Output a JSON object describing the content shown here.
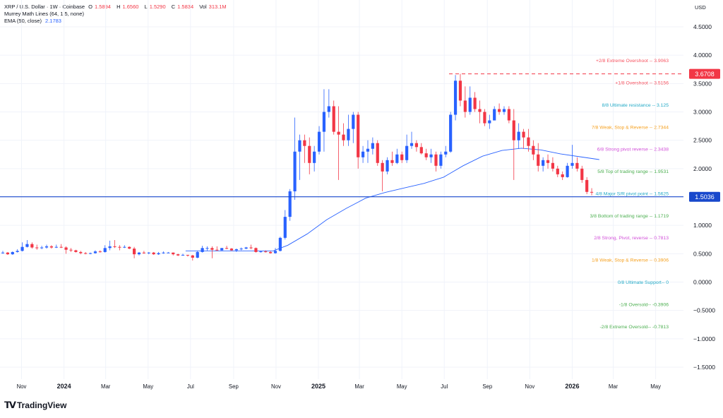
{
  "header": {
    "symbol": "XRP / U.S. Dollar · 1W · Coinbase",
    "o_label": "O",
    "o": "1.5894",
    "h_label": "H",
    "h": "1.6560",
    "l_label": "L",
    "l": "1.5290",
    "c_label": "C",
    "c": "1.5834",
    "vol_label": "Vol",
    "vol": "313.1M",
    "indicator1": "Murrey Math Lines (64, 1.5, none)",
    "indicator2_label": "EMA (50, close)",
    "indicator2_value": "2.1783"
  },
  "branding": {
    "name": "TradingView"
  },
  "chart_data": {
    "type": "candlestick",
    "currency_label": "USD",
    "y_range": [
      -1.75,
      4.75
    ],
    "y_ticks": [
      "4.5000",
      "4.0000",
      "3.5000",
      "3.0000",
      "2.5000",
      "2.0000",
      "1.5000",
      "1.0000",
      "0.5000",
      "0.0000",
      "−0.5000",
      "−1.0000",
      "−1.5000"
    ],
    "y_tick_values": [
      4.5,
      4.0,
      3.5,
      3.0,
      2.5,
      2.0,
      1.5,
      1.0,
      0.5,
      0.0,
      -0.5,
      -1.0,
      -1.5
    ],
    "x_ticks": [
      {
        "label": "Nov",
        "date": "2023-11-01",
        "bold": false
      },
      {
        "label": "2024",
        "date": "2024-01-01",
        "bold": true
      },
      {
        "label": "Mar",
        "date": "2024-03-01",
        "bold": false
      },
      {
        "label": "May",
        "date": "2024-05-01",
        "bold": false
      },
      {
        "label": "Jul",
        "date": "2024-07-01",
        "bold": false
      },
      {
        "label": "Sep",
        "date": "2024-09-01",
        "bold": false
      },
      {
        "label": "Nov",
        "date": "2024-11-01",
        "bold": false
      },
      {
        "label": "2025",
        "date": "2025-01-01",
        "bold": true
      },
      {
        "label": "Mar",
        "date": "2025-03-01",
        "bold": false
      },
      {
        "label": "May",
        "date": "2025-05-01",
        "bold": false
      },
      {
        "label": "Jul",
        "date": "2025-07-01",
        "bold": false
      },
      {
        "label": "Sep",
        "date": "2025-09-01",
        "bold": false
      },
      {
        "label": "Nov",
        "date": "2025-11-01",
        "bold": false
      },
      {
        "label": "2026",
        "date": "2026-01-01",
        "bold": true
      },
      {
        "label": "Mar",
        "date": "2026-03-01",
        "bold": false
      },
      {
        "label": "May",
        "date": "2026-05-01",
        "bold": false
      }
    ],
    "x_range": [
      "2023-10-01",
      "2026-06-10"
    ],
    "price_labels": [
      {
        "value": 3.6708,
        "text": "3.6708",
        "color": "#f23645",
        "line": "dashed"
      },
      {
        "value": 1.5036,
        "text": "1.5036",
        "color": "#1848cc",
        "line": "solid"
      }
    ],
    "murrey_lines": [
      {
        "label": "+2/8 Extreme Overshoot --",
        "value": 3.9063,
        "text": "3.9063",
        "color": "#f7525f"
      },
      {
        "label": "+1/8 Overshoot --",
        "value": 3.5156,
        "text": "3.5156",
        "color": "#f7525f"
      },
      {
        "label": "8/8 Ultimate resistance --",
        "value": 3.125,
        "text": "3.125",
        "color": "#22a9c6"
      },
      {
        "label": "7/8 Weak, Stop & Reverse --",
        "value": 2.7344,
        "text": "2.7344",
        "color": "#f59f1c"
      },
      {
        "label": "6/8 Strong pivot reverse --",
        "value": 2.3438,
        "text": "2.3438",
        "color": "#d14fd8"
      },
      {
        "label": "5/8 Top of trading range --",
        "value": 1.9531,
        "text": "1.9531",
        "color": "#4caf50"
      },
      {
        "label": "4/8 Major S/R pivot point --",
        "value": 1.5625,
        "text": "1.5625",
        "color": "#22a9c6"
      },
      {
        "label": "3/8 Bottom of trading range --",
        "value": 1.1719,
        "text": "1.1719",
        "color": "#4caf50"
      },
      {
        "label": "2/8 Strong, Pivot, reverse --",
        "value": 0.7813,
        "text": "0.7813",
        "color": "#d14fd8"
      },
      {
        "label": "1/8 Weak, Stop & Reverse --",
        "value": 0.3906,
        "text": "0.3906",
        "color": "#f59f1c"
      },
      {
        "label": "0/8 Ultimate Support--",
        "value": 0,
        "text": "0",
        "color": "#22a9c6"
      },
      {
        "label": "-1/8 Oversold--",
        "value": -0.3906,
        "text": "-0.3906",
        "color": "#4caf50"
      },
      {
        "label": "-2/8 Extreme Oversold--",
        "value": -0.7813,
        "text": "-0.7813",
        "color": "#4caf50"
      }
    ],
    "colors": {
      "up": "#2962ff",
      "down": "#f23645",
      "ema": "#2962ff",
      "grid": "#f0f3fa"
    },
    "candles": [
      [
        "2023-10-02",
        0.52,
        0.55,
        0.5,
        0.52
      ],
      [
        "2023-10-09",
        0.52,
        0.53,
        0.48,
        0.49
      ],
      [
        "2023-10-16",
        0.49,
        0.54,
        0.48,
        0.53
      ],
      [
        "2023-10-23",
        0.53,
        0.58,
        0.52,
        0.55
      ],
      [
        "2023-10-30",
        0.55,
        0.7,
        0.54,
        0.62
      ],
      [
        "2023-11-06",
        0.62,
        0.74,
        0.61,
        0.67
      ],
      [
        "2023-11-13",
        0.67,
        0.7,
        0.59,
        0.61
      ],
      [
        "2023-11-20",
        0.61,
        0.66,
        0.57,
        0.6
      ],
      [
        "2023-11-27",
        0.6,
        0.64,
        0.58,
        0.61
      ],
      [
        "2023-12-04",
        0.61,
        0.66,
        0.59,
        0.63
      ],
      [
        "2023-12-11",
        0.63,
        0.65,
        0.59,
        0.61
      ],
      [
        "2023-12-18",
        0.61,
        0.66,
        0.6,
        0.62
      ],
      [
        "2023-12-25",
        0.62,
        0.67,
        0.6,
        0.61
      ],
      [
        "2024-01-01",
        0.61,
        0.63,
        0.5,
        0.57
      ],
      [
        "2024-01-08",
        0.57,
        0.6,
        0.53,
        0.56
      ],
      [
        "2024-01-15",
        0.56,
        0.57,
        0.52,
        0.53
      ],
      [
        "2024-01-22",
        0.53,
        0.55,
        0.49,
        0.51
      ],
      [
        "2024-01-29",
        0.51,
        0.53,
        0.49,
        0.5
      ],
      [
        "2024-02-05",
        0.5,
        0.52,
        0.49,
        0.51
      ],
      [
        "2024-02-12",
        0.51,
        0.56,
        0.5,
        0.54
      ],
      [
        "2024-02-19",
        0.54,
        0.56,
        0.52,
        0.53
      ],
      [
        "2024-02-26",
        0.53,
        0.65,
        0.52,
        0.6
      ],
      [
        "2024-03-04",
        0.6,
        0.73,
        0.56,
        0.63
      ],
      [
        "2024-03-11",
        0.63,
        0.74,
        0.6,
        0.62
      ],
      [
        "2024-03-18",
        0.62,
        0.65,
        0.56,
        0.61
      ],
      [
        "2024-03-25",
        0.61,
        0.65,
        0.6,
        0.62
      ],
      [
        "2024-04-01",
        0.62,
        0.63,
        0.58,
        0.59
      ],
      [
        "2024-04-08",
        0.59,
        0.62,
        0.42,
        0.49
      ],
      [
        "2024-04-15",
        0.49,
        0.53,
        0.47,
        0.52
      ],
      [
        "2024-04-22",
        0.52,
        0.55,
        0.5,
        0.51
      ],
      [
        "2024-04-29",
        0.51,
        0.53,
        0.49,
        0.52
      ],
      [
        "2024-05-06",
        0.52,
        0.53,
        0.48,
        0.49
      ],
      [
        "2024-05-13",
        0.49,
        0.53,
        0.48,
        0.51
      ],
      [
        "2024-05-20",
        0.51,
        0.54,
        0.5,
        0.52
      ],
      [
        "2024-05-27",
        0.52,
        0.53,
        0.51,
        0.52
      ],
      [
        "2024-06-03",
        0.52,
        0.52,
        0.47,
        0.49
      ],
      [
        "2024-06-10",
        0.49,
        0.5,
        0.46,
        0.47
      ],
      [
        "2024-06-17",
        0.47,
        0.5,
        0.47,
        0.48
      ],
      [
        "2024-06-24",
        0.48,
        0.48,
        0.45,
        0.47
      ],
      [
        "2024-07-01",
        0.47,
        0.48,
        0.38,
        0.43
      ],
      [
        "2024-07-08",
        0.43,
        0.55,
        0.42,
        0.53
      ],
      [
        "2024-07-15",
        0.53,
        0.64,
        0.52,
        0.6
      ],
      [
        "2024-07-22",
        0.6,
        0.63,
        0.55,
        0.6
      ],
      [
        "2024-07-29",
        0.6,
        0.63,
        0.42,
        0.57
      ],
      [
        "2024-08-05",
        0.57,
        0.63,
        0.55,
        0.56
      ],
      [
        "2024-08-12",
        0.56,
        0.6,
        0.55,
        0.6
      ],
      [
        "2024-08-19",
        0.6,
        0.64,
        0.58,
        0.59
      ],
      [
        "2024-08-26",
        0.59,
        0.6,
        0.55,
        0.56
      ],
      [
        "2024-09-02",
        0.56,
        0.59,
        0.53,
        0.58
      ],
      [
        "2024-09-09",
        0.58,
        0.61,
        0.56,
        0.59
      ],
      [
        "2024-09-16",
        0.59,
        0.62,
        0.58,
        0.61
      ],
      [
        "2024-09-23",
        0.61,
        0.66,
        0.58,
        0.6
      ],
      [
        "2024-09-30",
        0.6,
        0.61,
        0.52,
        0.53
      ],
      [
        "2024-10-07",
        0.53,
        0.55,
        0.52,
        0.54
      ],
      [
        "2024-10-14",
        0.54,
        0.56,
        0.52,
        0.53
      ],
      [
        "2024-10-21",
        0.53,
        0.55,
        0.5,
        0.51
      ],
      [
        "2024-10-28",
        0.51,
        0.6,
        0.5,
        0.55
      ],
      [
        "2024-11-04",
        0.55,
        0.8,
        0.54,
        0.78
      ],
      [
        "2024-11-11",
        0.78,
        1.27,
        0.75,
        1.15
      ],
      [
        "2024-11-18",
        1.15,
        1.64,
        1.08,
        1.6
      ],
      [
        "2024-11-25",
        1.6,
        2.9,
        1.45,
        2.3
      ],
      [
        "2024-12-02",
        2.3,
        2.6,
        1.8,
        2.5
      ],
      [
        "2024-12-09",
        2.5,
        2.6,
        2.1,
        2.4
      ],
      [
        "2024-12-16",
        2.4,
        2.55,
        1.9,
        2.1
      ],
      [
        "2024-12-23",
        2.1,
        2.4,
        1.95,
        2.3
      ],
      [
        "2024-12-30",
        2.3,
        2.75,
        2.25,
        2.65
      ],
      [
        "2025-01-06",
        2.65,
        3.4,
        2.3,
        3.0
      ],
      [
        "2025-01-13",
        3.0,
        3.4,
        2.9,
        3.1
      ],
      [
        "2025-01-20",
        3.1,
        3.2,
        2.6,
        2.65
      ],
      [
        "2025-01-27",
        2.65,
        3.1,
        1.8,
        2.6
      ],
      [
        "2025-02-03",
        2.6,
        2.8,
        2.4,
        2.5
      ],
      [
        "2025-02-10",
        2.5,
        2.95,
        2.4,
        2.7
      ],
      [
        "2025-02-17",
        2.7,
        3.0,
        2.45,
        2.95
      ],
      [
        "2025-02-24",
        2.95,
        3.0,
        2.0,
        2.2
      ],
      [
        "2025-03-03",
        2.2,
        2.4,
        2.1,
        2.3
      ],
      [
        "2025-03-10",
        2.3,
        2.5,
        2.1,
        2.35
      ],
      [
        "2025-03-17",
        2.35,
        2.55,
        2.25,
        2.45
      ],
      [
        "2025-03-24",
        2.45,
        2.5,
        2.05,
        2.1
      ],
      [
        "2025-03-31",
        2.1,
        2.15,
        1.6,
        1.95
      ],
      [
        "2025-04-07",
        1.95,
        2.2,
        1.9,
        2.15
      ],
      [
        "2025-04-14",
        2.15,
        2.3,
        2.05,
        2.1
      ],
      [
        "2025-04-21",
        2.1,
        2.35,
        2.08,
        2.25
      ],
      [
        "2025-04-28",
        2.25,
        2.3,
        2.1,
        2.15
      ],
      [
        "2025-05-05",
        2.15,
        2.6,
        2.1,
        2.4
      ],
      [
        "2025-05-12",
        2.4,
        2.65,
        2.35,
        2.45
      ],
      [
        "2025-05-19",
        2.45,
        2.5,
        2.3,
        2.38
      ],
      [
        "2025-05-26",
        2.38,
        2.45,
        2.25,
        2.27
      ],
      [
        "2025-06-02",
        2.27,
        2.35,
        2.15,
        2.2
      ],
      [
        "2025-06-09",
        2.2,
        2.35,
        2.1,
        2.25
      ],
      [
        "2025-06-16",
        2.25,
        2.3,
        1.95,
        2.05
      ],
      [
        "2025-06-23",
        2.05,
        2.3,
        2.0,
        2.25
      ],
      [
        "2025-06-30",
        2.25,
        2.4,
        2.2,
        2.3
      ],
      [
        "2025-07-07",
        2.3,
        3.0,
        2.28,
        2.95
      ],
      [
        "2025-07-14",
        2.95,
        3.65,
        2.85,
        3.55
      ],
      [
        "2025-07-21",
        3.55,
        3.67,
        3.1,
        3.2
      ],
      [
        "2025-07-28",
        3.2,
        3.45,
        2.9,
        3.0
      ],
      [
        "2025-08-04",
        3.0,
        3.45,
        2.95,
        3.25
      ],
      [
        "2025-08-11",
        3.25,
        3.35,
        3.0,
        3.05
      ],
      [
        "2025-08-18",
        3.05,
        3.2,
        2.8,
        3.0
      ],
      [
        "2025-08-25",
        3.0,
        3.05,
        2.75,
        2.8
      ],
      [
        "2025-09-01",
        2.8,
        2.95,
        2.7,
        2.85
      ],
      [
        "2025-09-08",
        2.85,
        3.1,
        2.85,
        3.05
      ],
      [
        "2025-09-15",
        3.05,
        3.15,
        2.95,
        3.0
      ],
      [
        "2025-09-22",
        3.0,
        3.1,
        2.95,
        3.05
      ],
      [
        "2025-09-29",
        3.05,
        3.1,
        2.8,
        2.85
      ],
      [
        "2025-10-06",
        2.85,
        3.05,
        1.8,
        2.5
      ],
      [
        "2025-10-13",
        2.5,
        2.8,
        2.35,
        2.65
      ],
      [
        "2025-10-20",
        2.65,
        2.7,
        2.35,
        2.55
      ],
      [
        "2025-10-27",
        2.55,
        2.7,
        2.3,
        2.4
      ],
      [
        "2025-11-03",
        2.4,
        2.5,
        2.15,
        2.25
      ],
      [
        "2025-11-10",
        2.25,
        2.45,
        1.95,
        2.05
      ],
      [
        "2025-11-17",
        2.05,
        2.2,
        1.95,
        2.15
      ],
      [
        "2025-11-24",
        2.15,
        2.25,
        2.0,
        2.1
      ],
      [
        "2025-12-01",
        2.1,
        2.2,
        1.95,
        2.0
      ],
      [
        "2025-12-08",
        2.0,
        2.05,
        1.85,
        1.9
      ],
      [
        "2025-12-15",
        1.9,
        1.95,
        1.8,
        1.85
      ],
      [
        "2025-12-22",
        1.85,
        2.1,
        1.84,
        2.05
      ],
      [
        "2025-12-29",
        2.05,
        2.42,
        2.0,
        2.1
      ],
      [
        "2026-01-05",
        2.1,
        2.2,
        1.95,
        2.0
      ],
      [
        "2026-01-12",
        2.0,
        2.05,
        1.75,
        1.8
      ],
      [
        "2026-01-19",
        1.8,
        1.85,
        1.55,
        1.59
      ],
      [
        "2026-01-26",
        1.5894,
        1.656,
        1.529,
        1.5834
      ]
    ],
    "ema_50": [
      [
        "2024-06-24",
        0.55
      ],
      [
        "2024-09-02",
        0.55
      ],
      [
        "2024-10-28",
        0.55
      ],
      [
        "2024-11-18",
        0.65
      ],
      [
        "2024-12-16",
        0.85
      ],
      [
        "2025-01-13",
        1.1
      ],
      [
        "2025-02-10",
        1.3
      ],
      [
        "2025-03-10",
        1.48
      ],
      [
        "2025-04-07",
        1.58
      ],
      [
        "2025-05-05",
        1.66
      ],
      [
        "2025-06-02",
        1.74
      ],
      [
        "2025-06-30",
        1.85
      ],
      [
        "2025-07-28",
        2.05
      ],
      [
        "2025-08-25",
        2.22
      ],
      [
        "2025-09-22",
        2.32
      ],
      [
        "2025-10-20",
        2.36
      ],
      [
        "2025-11-17",
        2.33
      ],
      [
        "2025-12-15",
        2.26
      ],
      [
        "2026-01-12",
        2.21
      ],
      [
        "2026-02-09",
        2.16
      ]
    ]
  }
}
